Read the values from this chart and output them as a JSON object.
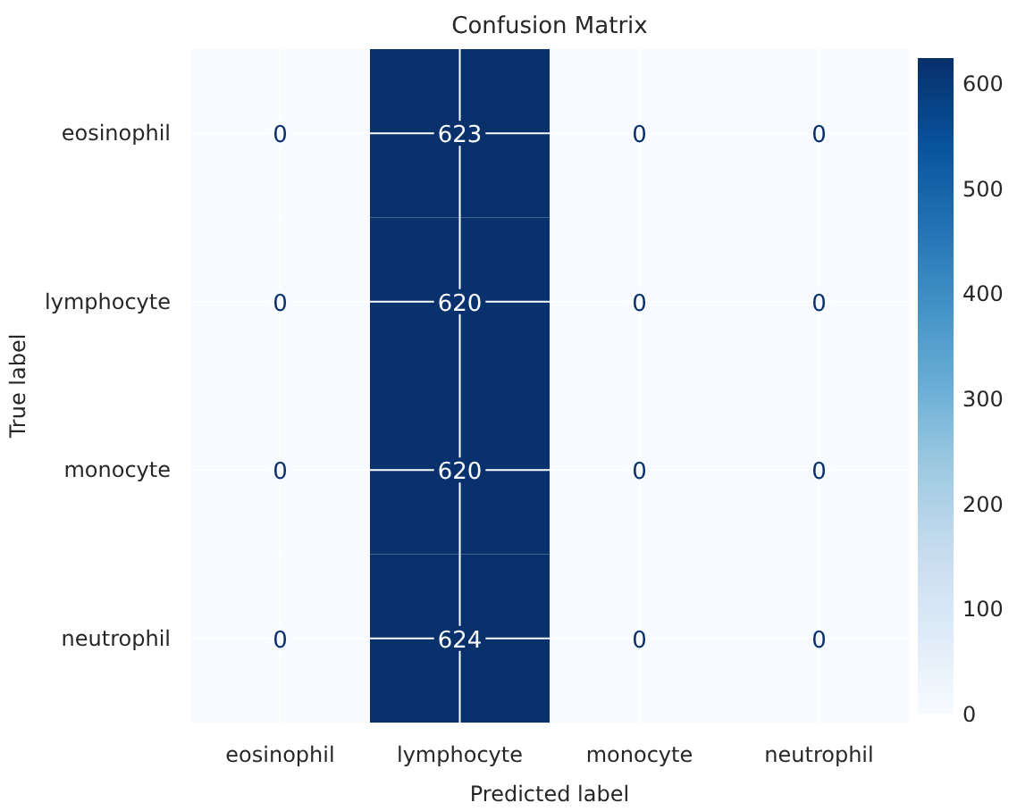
{
  "chart_data": {
    "type": "heatmap",
    "title": "Confusion Matrix",
    "xlabel": "Predicted label",
    "ylabel": "True label",
    "categories": [
      "eosinophil",
      "lymphocyte",
      "monocyte",
      "neutrophil"
    ],
    "y_categories": [
      "eosinophil",
      "lymphocyte",
      "monocyte",
      "neutrophil"
    ],
    "cells": [
      [
        0,
        623,
        0,
        0
      ],
      [
        0,
        620,
        0,
        0
      ],
      [
        0,
        620,
        0,
        0
      ],
      [
        0,
        624,
        0,
        0
      ]
    ],
    "clim": [
      0,
      624
    ],
    "cticks": [
      0,
      100,
      200,
      300,
      400,
      500,
      600
    ],
    "grid": true,
    "data_labels": true
  }
}
